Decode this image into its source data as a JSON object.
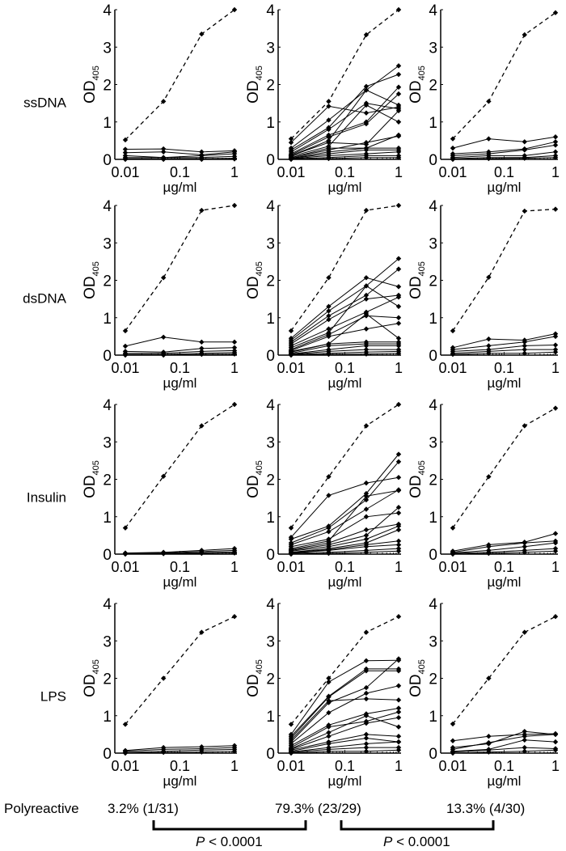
{
  "chart_data": [
    {
      "type": "line",
      "row_label": "ssDNA",
      "column": 1,
      "ylabel": "OD",
      "ylabel_sub": "405",
      "xlabel": "µg/ml",
      "x_scale": "log",
      "xlim": [
        0.008,
        1.1
      ],
      "ylim": [
        0,
        4
      ],
      "x": [
        0.01,
        0.05,
        0.25,
        1
      ],
      "x_ticks": [
        "0.01",
        "0.1",
        "1"
      ],
      "y_ticks": [
        "0",
        "1",
        "2",
        "3",
        "4"
      ],
      "control": [
        0.52,
        1.55,
        3.35,
        4.0
      ],
      "series": [
        [
          0.27,
          0.28,
          0.2,
          0.23
        ],
        [
          0.18,
          0.2,
          0.12,
          0.2
        ],
        [
          0.1,
          0.05,
          0.1,
          0.15
        ],
        [
          0.05,
          0.05,
          0.05,
          0.08
        ],
        [
          0.02,
          0.02,
          0.02,
          0.03
        ],
        [
          0,
          0,
          0,
          0.01
        ]
      ]
    },
    {
      "type": "line",
      "row_label": "ssDNA",
      "column": 2,
      "ylabel": "OD",
      "ylabel_sub": "405",
      "xlabel": "µg/ml",
      "x_scale": "log",
      "xlim": [
        0.008,
        1.1
      ],
      "ylim": [
        0,
        4
      ],
      "x": [
        0.01,
        0.05,
        0.25,
        1
      ],
      "x_ticks": [
        "0.01",
        "0.1",
        "1"
      ],
      "y_ticks": [
        "0",
        "1",
        "2",
        "3",
        "4"
      ],
      "control": [
        0.55,
        1.55,
        3.33,
        4.0
      ],
      "series": [
        [
          0.45,
          1.42,
          1.24,
          1.4
        ],
        [
          0.3,
          1.05,
          1.85,
          2.5
        ],
        [
          0.25,
          0.85,
          1.95,
          2.27
        ],
        [
          0.2,
          0.8,
          1.5,
          1.35
        ],
        [
          0.15,
          0.65,
          1.0,
          1.93
        ],
        [
          0.12,
          0.6,
          0.95,
          1.75
        ],
        [
          0.1,
          0.5,
          1.85,
          1.45
        ],
        [
          0.1,
          0.45,
          0.4,
          1.3
        ],
        [
          0.08,
          0.35,
          1.45,
          1.0
        ],
        [
          0.05,
          0.3,
          0.3,
          0.65
        ],
        [
          0.05,
          0.25,
          0.45,
          0.62
        ],
        [
          0.03,
          0.2,
          0.3,
          0.3
        ],
        [
          0.03,
          0.15,
          0.25,
          0.25
        ],
        [
          0.02,
          0.1,
          0.15,
          0.2
        ],
        [
          0.01,
          0.05,
          0.1,
          0.1
        ],
        [
          0,
          0.02,
          0.05,
          0.05
        ]
      ]
    },
    {
      "type": "line",
      "row_label": "ssDNA",
      "column": 3,
      "ylabel": "OD",
      "ylabel_sub": "405",
      "xlabel": "µg/ml",
      "x_scale": "log",
      "xlim": [
        0.008,
        1.1
      ],
      "ylim": [
        0,
        4
      ],
      "x": [
        0.01,
        0.05,
        0.25,
        1
      ],
      "x_ticks": [
        "0.01",
        "0.1",
        "1"
      ],
      "y_ticks": [
        "0",
        "1",
        "2",
        "3",
        "4"
      ],
      "control": [
        0.55,
        1.55,
        3.33,
        3.92
      ],
      "series": [
        [
          0.3,
          0.55,
          0.47,
          0.6
        ],
        [
          0.15,
          0.2,
          0.28,
          0.47
        ],
        [
          0.1,
          0.15,
          0.25,
          0.38
        ],
        [
          0.05,
          0.1,
          0.1,
          0.2
        ],
        [
          0.02,
          0.05,
          0.05,
          0.1
        ],
        [
          0,
          0.02,
          0.03,
          0.05
        ]
      ]
    },
    {
      "type": "line",
      "row_label": "dsDNA",
      "column": 1,
      "ylabel": "OD",
      "ylabel_sub": "405",
      "xlabel": "µg/ml",
      "x_scale": "log",
      "xlim": [
        0.008,
        1.1
      ],
      "ylim": [
        0,
        4
      ],
      "x": [
        0.01,
        0.05,
        0.25,
        1
      ],
      "x_ticks": [
        "0.01",
        "0.1",
        "1"
      ],
      "y_ticks": [
        "0",
        "1",
        "2",
        "3",
        "4"
      ],
      "control": [
        0.65,
        2.07,
        3.87,
        4.0
      ],
      "series": [
        [
          0.24,
          0.48,
          0.35,
          0.35
        ],
        [
          0.1,
          0.08,
          0.18,
          0.2
        ],
        [
          0.05,
          0.05,
          0.1,
          0.12
        ],
        [
          0.02,
          0.02,
          0.05,
          0.07
        ],
        [
          0,
          0,
          0.02,
          0.03
        ]
      ]
    },
    {
      "type": "line",
      "row_label": "dsDNA",
      "column": 2,
      "ylabel": "OD",
      "ylabel_sub": "405",
      "xlabel": "µg/ml",
      "x_scale": "log",
      "xlim": [
        0.008,
        1.1
      ],
      "ylim": [
        0,
        4
      ],
      "x": [
        0.01,
        0.05,
        0.25,
        1
      ],
      "x_ticks": [
        "0.01",
        "0.1",
        "1"
      ],
      "y_ticks": [
        "0",
        "1",
        "2",
        "3",
        "4"
      ],
      "control": [
        0.65,
        2.07,
        3.87,
        4.0
      ],
      "series": [
        [
          0.45,
          1.3,
          2.07,
          1.83
        ],
        [
          0.4,
          1.18,
          1.85,
          2.58
        ],
        [
          0.35,
          1.05,
          1.6,
          2.3
        ],
        [
          0.3,
          0.95,
          1.5,
          1.6
        ],
        [
          0.25,
          0.7,
          1.15,
          1.55
        ],
        [
          0.2,
          0.6,
          1.85,
          1.3
        ],
        [
          0.15,
          0.55,
          1.05,
          1.0
        ],
        [
          0.12,
          0.5,
          0.7,
          0.85
        ],
        [
          0.1,
          0.3,
          1.1,
          0.45
        ],
        [
          0.08,
          0.3,
          0.35,
          0.35
        ],
        [
          0.05,
          0.25,
          0.3,
          0.3
        ],
        [
          0.03,
          0.15,
          0.25,
          0.25
        ],
        [
          0.02,
          0.1,
          0.15,
          0.15
        ],
        [
          0.01,
          0.05,
          0.08,
          0.1
        ],
        [
          0,
          0.02,
          0.03,
          0.05
        ]
      ]
    },
    {
      "type": "line",
      "row_label": "dsDNA",
      "column": 3,
      "ylabel": "OD",
      "ylabel_sub": "405",
      "xlabel": "µg/ml",
      "x_scale": "log",
      "xlim": [
        0.008,
        1.1
      ],
      "ylim": [
        0,
        4
      ],
      "x": [
        0.01,
        0.05,
        0.25,
        1
      ],
      "x_ticks": [
        "0.01",
        "0.1",
        "1"
      ],
      "y_ticks": [
        "0",
        "1",
        "2",
        "3",
        "4"
      ],
      "control": [
        0.65,
        2.08,
        3.85,
        3.9
      ],
      "series": [
        [
          0.2,
          0.43,
          0.4,
          0.57
        ],
        [
          0.15,
          0.25,
          0.35,
          0.5
        ],
        [
          0.1,
          0.15,
          0.25,
          0.27
        ],
        [
          0.05,
          0.1,
          0.15,
          0.15
        ],
        [
          0.02,
          0.05,
          0.05,
          0.08
        ]
      ]
    },
    {
      "type": "line",
      "row_label": "Insulin",
      "column": 1,
      "ylabel": "OD",
      "ylabel_sub": "405",
      "xlabel": "µg/ml",
      "x_scale": "log",
      "xlim": [
        0.008,
        1.1
      ],
      "ylim": [
        0,
        4
      ],
      "x": [
        0.01,
        0.05,
        0.25,
        1
      ],
      "x_ticks": [
        "0.01",
        "0.1",
        "1"
      ],
      "y_ticks": [
        "0",
        "1",
        "2",
        "3",
        "4"
      ],
      "control": [
        0.7,
        2.08,
        3.43,
        4.0
      ],
      "series": [
        [
          0.03,
          0.05,
          0.1,
          0.15
        ],
        [
          0.02,
          0.03,
          0.07,
          0.1
        ],
        [
          0.01,
          0.02,
          0.04,
          0.06
        ],
        [
          0,
          0.01,
          0.02,
          0.03
        ]
      ]
    },
    {
      "type": "line",
      "row_label": "Insulin",
      "column": 2,
      "ylabel": "OD",
      "ylabel_sub": "405",
      "xlabel": "µg/ml",
      "x_scale": "log",
      "xlim": [
        0.008,
        1.1
      ],
      "ylim": [
        0,
        4
      ],
      "x": [
        0.01,
        0.05,
        0.25,
        1
      ],
      "x_ticks": [
        "0.01",
        "0.1",
        "1"
      ],
      "y_ticks": [
        "0",
        "1",
        "2",
        "3",
        "4"
      ],
      "control": [
        0.7,
        2.07,
        3.43,
        4.0
      ],
      "series": [
        [
          0.45,
          1.57,
          1.9,
          2.05
        ],
        [
          0.4,
          0.75,
          1.62,
          2.67
        ],
        [
          0.3,
          0.7,
          1.45,
          2.47
        ],
        [
          0.25,
          0.6,
          1.2,
          1.72
        ],
        [
          0.2,
          0.4,
          1.0,
          1.1
        ],
        [
          0.15,
          0.35,
          1.55,
          1.7
        ],
        [
          0.12,
          0.3,
          0.65,
          0.8
        ],
        [
          0.1,
          0.25,
          0.5,
          1.25
        ],
        [
          0.08,
          0.2,
          0.4,
          0.75
        ],
        [
          0.05,
          0.15,
          0.3,
          0.65
        ],
        [
          0.04,
          0.12,
          0.25,
          0.35
        ],
        [
          0.03,
          0.1,
          0.2,
          0.25
        ],
        [
          0.02,
          0.05,
          0.1,
          0.15
        ],
        [
          0,
          0.02,
          0.05,
          0.08
        ]
      ]
    },
    {
      "type": "line",
      "row_label": "Insulin",
      "column": 3,
      "ylabel": "OD",
      "ylabel_sub": "405",
      "xlabel": "µg/ml",
      "x_scale": "log",
      "xlim": [
        0.008,
        1.1
      ],
      "ylim": [
        0,
        4
      ],
      "x": [
        0.01,
        0.05,
        0.25,
        1
      ],
      "x_ticks": [
        "0.01",
        "0.1",
        "1"
      ],
      "y_ticks": [
        "0",
        "1",
        "2",
        "3",
        "4"
      ],
      "control": [
        0.7,
        2.07,
        3.43,
        3.9
      ],
      "series": [
        [
          0.08,
          0.25,
          0.32,
          0.55
        ],
        [
          0.05,
          0.2,
          0.3,
          0.35
        ],
        [
          0.03,
          0.1,
          0.2,
          0.3
        ],
        [
          0.02,
          0.05,
          0.1,
          0.15
        ],
        [
          0,
          0.02,
          0.05,
          0.08
        ]
      ]
    },
    {
      "type": "line",
      "row_label": "LPS",
      "column": 1,
      "ylabel": "OD",
      "ylabel_sub": "405",
      "xlabel": "µg/ml",
      "x_scale": "log",
      "xlim": [
        0.008,
        1.1
      ],
      "ylim": [
        0,
        4
      ],
      "x": [
        0.01,
        0.05,
        0.25,
        1
      ],
      "x_ticks": [
        "0.01",
        "0.1",
        "1"
      ],
      "y_ticks": [
        "0",
        "1",
        "2",
        "3",
        "4"
      ],
      "control": [
        0.77,
        2.0,
        3.23,
        3.65
      ],
      "series": [
        [
          0.07,
          0.15,
          0.17,
          0.2
        ],
        [
          0.05,
          0.1,
          0.12,
          0.15
        ],
        [
          0.02,
          0.05,
          0.08,
          0.1
        ],
        [
          0,
          0.02,
          0.03,
          0.05
        ]
      ]
    },
    {
      "type": "line",
      "row_label": "LPS",
      "column": 2,
      "ylabel": "OD",
      "ylabel_sub": "405",
      "xlabel": "µg/ml",
      "x_scale": "log",
      "xlim": [
        0.008,
        1.1
      ],
      "ylim": [
        0,
        4
      ],
      "x": [
        0.01,
        0.05,
        0.25,
        1
      ],
      "x_ticks": [
        "0.01",
        "0.1",
        "1"
      ],
      "y_ticks": [
        "0",
        "1",
        "2",
        "3",
        "4"
      ],
      "control": [
        0.77,
        2.0,
        3.23,
        3.65
      ],
      "series": [
        [
          0.5,
          1.9,
          2.47,
          2.48
        ],
        [
          0.45,
          1.52,
          2.25,
          2.25
        ],
        [
          0.4,
          1.5,
          2.2,
          2.2
        ],
        [
          0.35,
          1.4,
          1.45,
          1.42
        ],
        [
          0.3,
          1.35,
          1.75,
          2.52
        ],
        [
          0.25,
          1.08,
          1.6,
          1.8
        ],
        [
          0.2,
          0.75,
          1.05,
          1.2
        ],
        [
          0.15,
          0.7,
          0.85,
          1.1
        ],
        [
          0.12,
          0.55,
          1.0,
          0.7
        ],
        [
          0.1,
          0.45,
          0.8,
          0.95
        ],
        [
          0.08,
          0.3,
          0.5,
          0.45
        ],
        [
          0.05,
          0.25,
          0.4,
          0.3
        ],
        [
          0.03,
          0.15,
          0.25,
          0.3
        ],
        [
          0.02,
          0.1,
          0.15,
          0.15
        ],
        [
          0,
          0.05,
          0.05,
          0.08
        ]
      ]
    },
    {
      "type": "line",
      "row_label": "LPS",
      "column": 3,
      "ylabel": "OD",
      "ylabel_sub": "405",
      "xlabel": "µg/ml",
      "x_scale": "log",
      "xlim": [
        0.008,
        1.1
      ],
      "ylim": [
        0,
        4
      ],
      "x": [
        0.01,
        0.05,
        0.25,
        1
      ],
      "x_ticks": [
        "0.01",
        "0.1",
        "1"
      ],
      "y_ticks": [
        "0",
        "1",
        "2",
        "3",
        "4"
      ],
      "control": [
        0.78,
        2.0,
        3.23,
        3.65
      ],
      "series": [
        [
          0.33,
          0.45,
          0.5,
          0.52
        ],
        [
          0.15,
          0.25,
          0.58,
          0.5
        ],
        [
          0.1,
          0.28,
          0.45,
          0.5
        ],
        [
          0.05,
          0.1,
          0.35,
          0.3
        ],
        [
          0.03,
          0.08,
          0.15,
          0.12
        ],
        [
          0,
          0.03,
          0.05,
          0.08
        ]
      ]
    }
  ],
  "footer": {
    "label": "Polyreactive",
    "percentages": [
      "3.2% (1/31)",
      "79.3% (23/29)",
      "13.3% (4/30)"
    ],
    "comparisons": [
      {
        "p_symbol": "P",
        "p_text": " < 0.0001"
      },
      {
        "p_symbol": "P",
        "p_text": " < 0.0001"
      }
    ]
  },
  "colors": {
    "line": "#000000",
    "background": "#ffffff"
  }
}
